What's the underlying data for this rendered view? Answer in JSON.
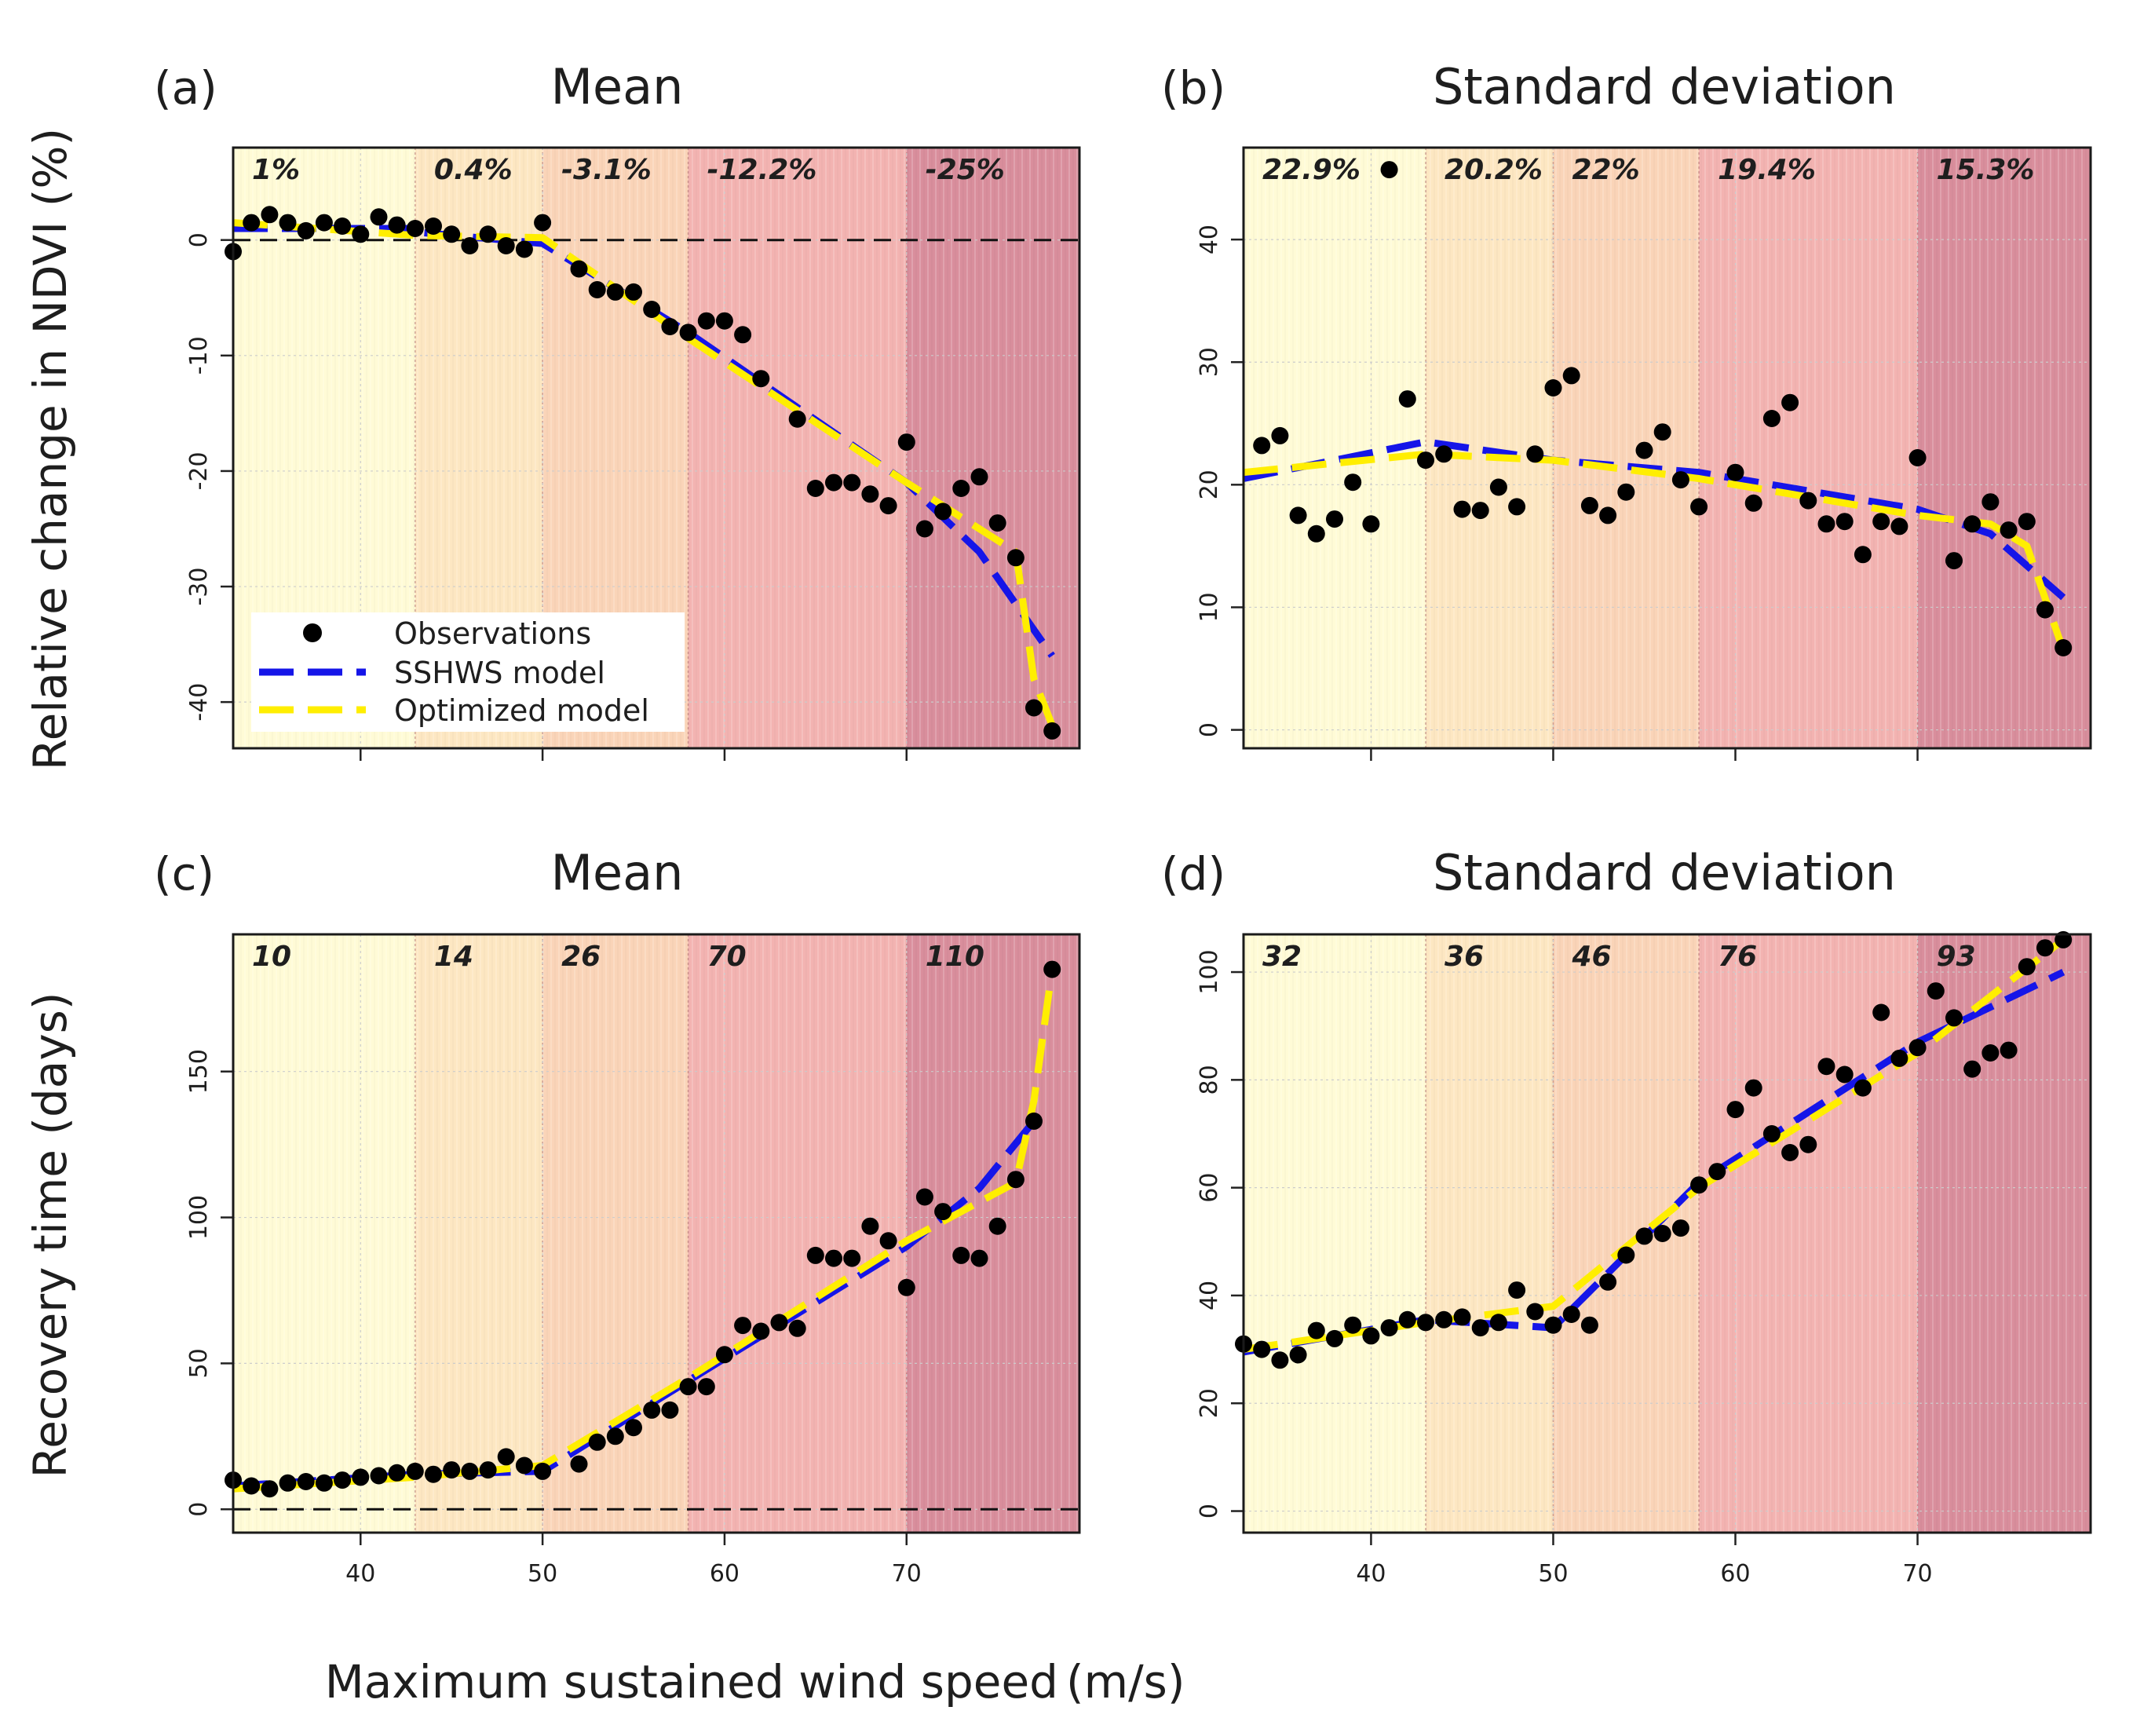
{
  "xlabel": "Maximum sustained wind speed",
  "xlabel_unit": "(m/s)",
  "row_ylabels": [
    "Relative change in NDVI (%)",
    "Recovery time (days)"
  ],
  "category_colors": [
    "#fffbd6",
    "#fde7c2",
    "#fad4b8",
    "#f3b3b1",
    "#d98e9c"
  ],
  "category_bounds": [
    33,
    43,
    50,
    58,
    70,
    79.5
  ],
  "legend": {
    "observations": "Observations",
    "sshws": "SSHWS model",
    "optimized": "Optimized model"
  },
  "series_colors": {
    "observations": "#000000",
    "sshws": "#1515e8",
    "optimized": "#ffee00"
  },
  "chart_data": [
    {
      "type": "scatter",
      "letter": "(a)",
      "title": "Mean",
      "xlim": [
        33,
        79.5
      ],
      "ylim": [
        -44,
        8
      ],
      "xticks": [
        40,
        50,
        60,
        70
      ],
      "yticks": [
        0,
        -10,
        -20,
        -30,
        -40
      ],
      "show_xtick_labels": false,
      "hline": 0,
      "show_legend": true,
      "category_labels": [
        "1%",
        "0.4%",
        "-3.1%",
        "-12.2%",
        "-25%"
      ],
      "observations": [
        [
          33,
          -1
        ],
        [
          34,
          1.5
        ],
        [
          35,
          2.2
        ],
        [
          36,
          1.5
        ],
        [
          37,
          0.8
        ],
        [
          38,
          1.5
        ],
        [
          39,
          1.2
        ],
        [
          40,
          0.5
        ],
        [
          41,
          2.0
        ],
        [
          42,
          1.3
        ],
        [
          43,
          1.0
        ],
        [
          44,
          1.2
        ],
        [
          45,
          0.5
        ],
        [
          46,
          -0.5
        ],
        [
          47,
          0.5
        ],
        [
          48,
          -0.5
        ],
        [
          49,
          -0.8
        ],
        [
          50,
          1.5
        ],
        [
          52,
          -2.5
        ],
        [
          53,
          -4.3
        ],
        [
          54,
          -4.5
        ],
        [
          55,
          -4.5
        ],
        [
          56,
          -6.0
        ],
        [
          57,
          -7.5
        ],
        [
          58,
          -8.0
        ],
        [
          59,
          -7.0
        ],
        [
          60,
          -7.0
        ],
        [
          61,
          -8.2
        ],
        [
          62,
          -12.0
        ],
        [
          64,
          -15.5
        ],
        [
          65,
          -21.5
        ],
        [
          66,
          -21.0
        ],
        [
          67,
          -21.0
        ],
        [
          68,
          -22.0
        ],
        [
          69,
          -23.0
        ],
        [
          70,
          -17.5
        ],
        [
          71,
          -25.0
        ],
        [
          72,
          -23.5
        ],
        [
          73,
          -21.5
        ],
        [
          74,
          -20.5
        ],
        [
          75,
          -24.5
        ],
        [
          76,
          -27.5
        ],
        [
          77,
          -40.5
        ],
        [
          78,
          -42.5
        ]
      ],
      "sshws_model": [
        [
          33,
          1
        ],
        [
          43,
          1
        ],
        [
          43,
          0.7
        ],
        [
          50,
          -0.3
        ],
        [
          50,
          -0.3
        ],
        [
          58,
          -8
        ],
        [
          58,
          -8
        ],
        [
          70,
          -21
        ],
        [
          70,
          -21
        ],
        [
          74,
          -27
        ],
        [
          78,
          -36
        ]
      ],
      "optimized_model": [
        [
          33,
          1.5
        ],
        [
          43,
          0.4
        ],
        [
          50,
          0.2
        ],
        [
          58,
          -8.5
        ],
        [
          70,
          -21
        ],
        [
          73,
          -24
        ],
        [
          76,
          -27
        ],
        [
          77,
          -38
        ],
        [
          78,
          -42
        ]
      ]
    },
    {
      "type": "scatter",
      "letter": "(b)",
      "title": "Standard deviation",
      "xlim": [
        33,
        79.5
      ],
      "ylim": [
        -1.5,
        47.5
      ],
      "xticks": [
        40,
        50,
        60,
        70
      ],
      "yticks": [
        0,
        10,
        20,
        30,
        40
      ],
      "show_xtick_labels": false,
      "hline": null,
      "show_legend": false,
      "category_labels": [
        "22.9%",
        "20.2%",
        "22%",
        "19.4%",
        "15.3%"
      ],
      "observations": [
        [
          34,
          23.2
        ],
        [
          35,
          24.0
        ],
        [
          36,
          17.5
        ],
        [
          37,
          16.0
        ],
        [
          38,
          17.2
        ],
        [
          39,
          20.2
        ],
        [
          40,
          16.8
        ],
        [
          41,
          45.7
        ],
        [
          42,
          27.0
        ],
        [
          43,
          22.0
        ],
        [
          44,
          22.5
        ],
        [
          45,
          18.0
        ],
        [
          46,
          17.9
        ],
        [
          47,
          19.8
        ],
        [
          48,
          18.2
        ],
        [
          49,
          22.5
        ],
        [
          50,
          27.9
        ],
        [
          51,
          28.9
        ],
        [
          52,
          18.3
        ],
        [
          53,
          17.5
        ],
        [
          54,
          19.4
        ],
        [
          55,
          22.8
        ],
        [
          56,
          24.3
        ],
        [
          57,
          20.4
        ],
        [
          58,
          18.2
        ],
        [
          60,
          21.0
        ],
        [
          61,
          18.5
        ],
        [
          62,
          25.4
        ],
        [
          63,
          26.7
        ],
        [
          64,
          18.7
        ],
        [
          65,
          16.8
        ],
        [
          66,
          17.0
        ],
        [
          67,
          14.3
        ],
        [
          68,
          17.0
        ],
        [
          69,
          16.6
        ],
        [
          70,
          22.2
        ],
        [
          72,
          13.8
        ],
        [
          73,
          16.8
        ],
        [
          74,
          18.6
        ],
        [
          75,
          16.3
        ],
        [
          76,
          17.0
        ],
        [
          77,
          9.8
        ],
        [
          78,
          6.7
        ]
      ],
      "sshws_model": [
        [
          33,
          20.5
        ],
        [
          43,
          23.5
        ],
        [
          43,
          23.5
        ],
        [
          50,
          22
        ],
        [
          58,
          21
        ],
        [
          58,
          21
        ],
        [
          70,
          18
        ],
        [
          70,
          18
        ],
        [
          74,
          16
        ],
        [
          78,
          10.8
        ]
      ],
      "optimized_model": [
        [
          33,
          21
        ],
        [
          43,
          22.5
        ],
        [
          50,
          22
        ],
        [
          58,
          20.5
        ],
        [
          70,
          17.5
        ],
        [
          74,
          16.8
        ],
        [
          76,
          15
        ],
        [
          78,
          6.5
        ]
      ]
    },
    {
      "type": "scatter",
      "letter": "(c)",
      "title": "Mean",
      "xlim": [
        33,
        79.5
      ],
      "ylim": [
        -8,
        197
      ],
      "xticks": [
        40,
        50,
        60,
        70
      ],
      "yticks": [
        0,
        50,
        100,
        150
      ],
      "show_xtick_labels": true,
      "hline": 0,
      "show_legend": false,
      "category_labels": [
        "10",
        "14",
        "26",
        "70",
        "110"
      ],
      "observations": [
        [
          33,
          10
        ],
        [
          34,
          8
        ],
        [
          35,
          7
        ],
        [
          36,
          9
        ],
        [
          37,
          9.5
        ],
        [
          38,
          9
        ],
        [
          39,
          10
        ],
        [
          40,
          11
        ],
        [
          41,
          11.5
        ],
        [
          42,
          12.5
        ],
        [
          43,
          13
        ],
        [
          44,
          12
        ],
        [
          45,
          13.5
        ],
        [
          46,
          13
        ],
        [
          47,
          13.5
        ],
        [
          48,
          18
        ],
        [
          49,
          15
        ],
        [
          50,
          13
        ],
        [
          52,
          15.5
        ],
        [
          53,
          23
        ],
        [
          54,
          25
        ],
        [
          55,
          28
        ],
        [
          56,
          34
        ],
        [
          57,
          34
        ],
        [
          58,
          42
        ],
        [
          59,
          42
        ],
        [
          60,
          53
        ],
        [
          61,
          63
        ],
        [
          62,
          61
        ],
        [
          63,
          64
        ],
        [
          64,
          62
        ],
        [
          65,
          87
        ],
        [
          66,
          86
        ],
        [
          67,
          86
        ],
        [
          68,
          97
        ],
        [
          69,
          92
        ],
        [
          70,
          76
        ],
        [
          71,
          107
        ],
        [
          72,
          102
        ],
        [
          73,
          87
        ],
        [
          74,
          86
        ],
        [
          75,
          97
        ],
        [
          76,
          113
        ],
        [
          77,
          133
        ],
        [
          78,
          185
        ]
      ],
      "sshws_model": [
        [
          33,
          8
        ],
        [
          43,
          12
        ],
        [
          43,
          12
        ],
        [
          50,
          13
        ],
        [
          50,
          13
        ],
        [
          58,
          44
        ],
        [
          58,
          44
        ],
        [
          70,
          90
        ],
        [
          70,
          90
        ],
        [
          74,
          110
        ],
        [
          77,
          133
        ]
      ],
      "optimized_model": [
        [
          33,
          7
        ],
        [
          43,
          11
        ],
        [
          50,
          15
        ],
        [
          58,
          45
        ],
        [
          70,
          92
        ],
        [
          76,
          112
        ],
        [
          77,
          140
        ],
        [
          78,
          185
        ]
      ]
    },
    {
      "type": "scatter",
      "letter": "(d)",
      "title": "Standard deviation",
      "xlim": [
        33,
        79.5
      ],
      "ylim": [
        -4,
        107
      ],
      "xticks": [
        40,
        50,
        60,
        70
      ],
      "yticks": [
        0,
        20,
        40,
        60,
        80,
        100
      ],
      "show_xtick_labels": true,
      "hline": null,
      "show_legend": false,
      "category_labels": [
        "32",
        "36",
        "46",
        "76",
        "93"
      ],
      "observations": [
        [
          33,
          31
        ],
        [
          34,
          30
        ],
        [
          35,
          28
        ],
        [
          36,
          29
        ],
        [
          37,
          33.5
        ],
        [
          38,
          32
        ],
        [
          39,
          34.5
        ],
        [
          40,
          32.5
        ],
        [
          41,
          34
        ],
        [
          42,
          35.5
        ],
        [
          43,
          35
        ],
        [
          44,
          35.5
        ],
        [
          45,
          36
        ],
        [
          46,
          34
        ],
        [
          47,
          35
        ],
        [
          48,
          41
        ],
        [
          49,
          37
        ],
        [
          50,
          34.5
        ],
        [
          51,
          36.5
        ],
        [
          52,
          34.5
        ],
        [
          53,
          42.5
        ],
        [
          54,
          47.5
        ],
        [
          55,
          51
        ],
        [
          56,
          51.5
        ],
        [
          57,
          52.5
        ],
        [
          58,
          60.5
        ],
        [
          59,
          63
        ],
        [
          60,
          74.5
        ],
        [
          61,
          78.5
        ],
        [
          62,
          70
        ],
        [
          63,
          66.5
        ],
        [
          64,
          68
        ],
        [
          65,
          82.5
        ],
        [
          66,
          81
        ],
        [
          67,
          78.5
        ],
        [
          68,
          92.5
        ],
        [
          69,
          84
        ],
        [
          70,
          86
        ],
        [
          71,
          96.5
        ],
        [
          72,
          91.5
        ],
        [
          73,
          82
        ],
        [
          74,
          85
        ],
        [
          75,
          85.5
        ],
        [
          76,
          101
        ],
        [
          77,
          104.5
        ],
        [
          78,
          106
        ]
      ],
      "sshws_model": [
        [
          33,
          29.5
        ],
        [
          43,
          35.5
        ],
        [
          43,
          35.5
        ],
        [
          50,
          34
        ],
        [
          50,
          34
        ],
        [
          58,
          61
        ],
        [
          58,
          61
        ],
        [
          70,
          87
        ],
        [
          70,
          87
        ],
        [
          78,
          100
        ]
      ],
      "optimized_model": [
        [
          33,
          30
        ],
        [
          43,
          35
        ],
        [
          50,
          38
        ],
        [
          58,
          60
        ],
        [
          70,
          85
        ],
        [
          78,
          106
        ]
      ]
    }
  ]
}
